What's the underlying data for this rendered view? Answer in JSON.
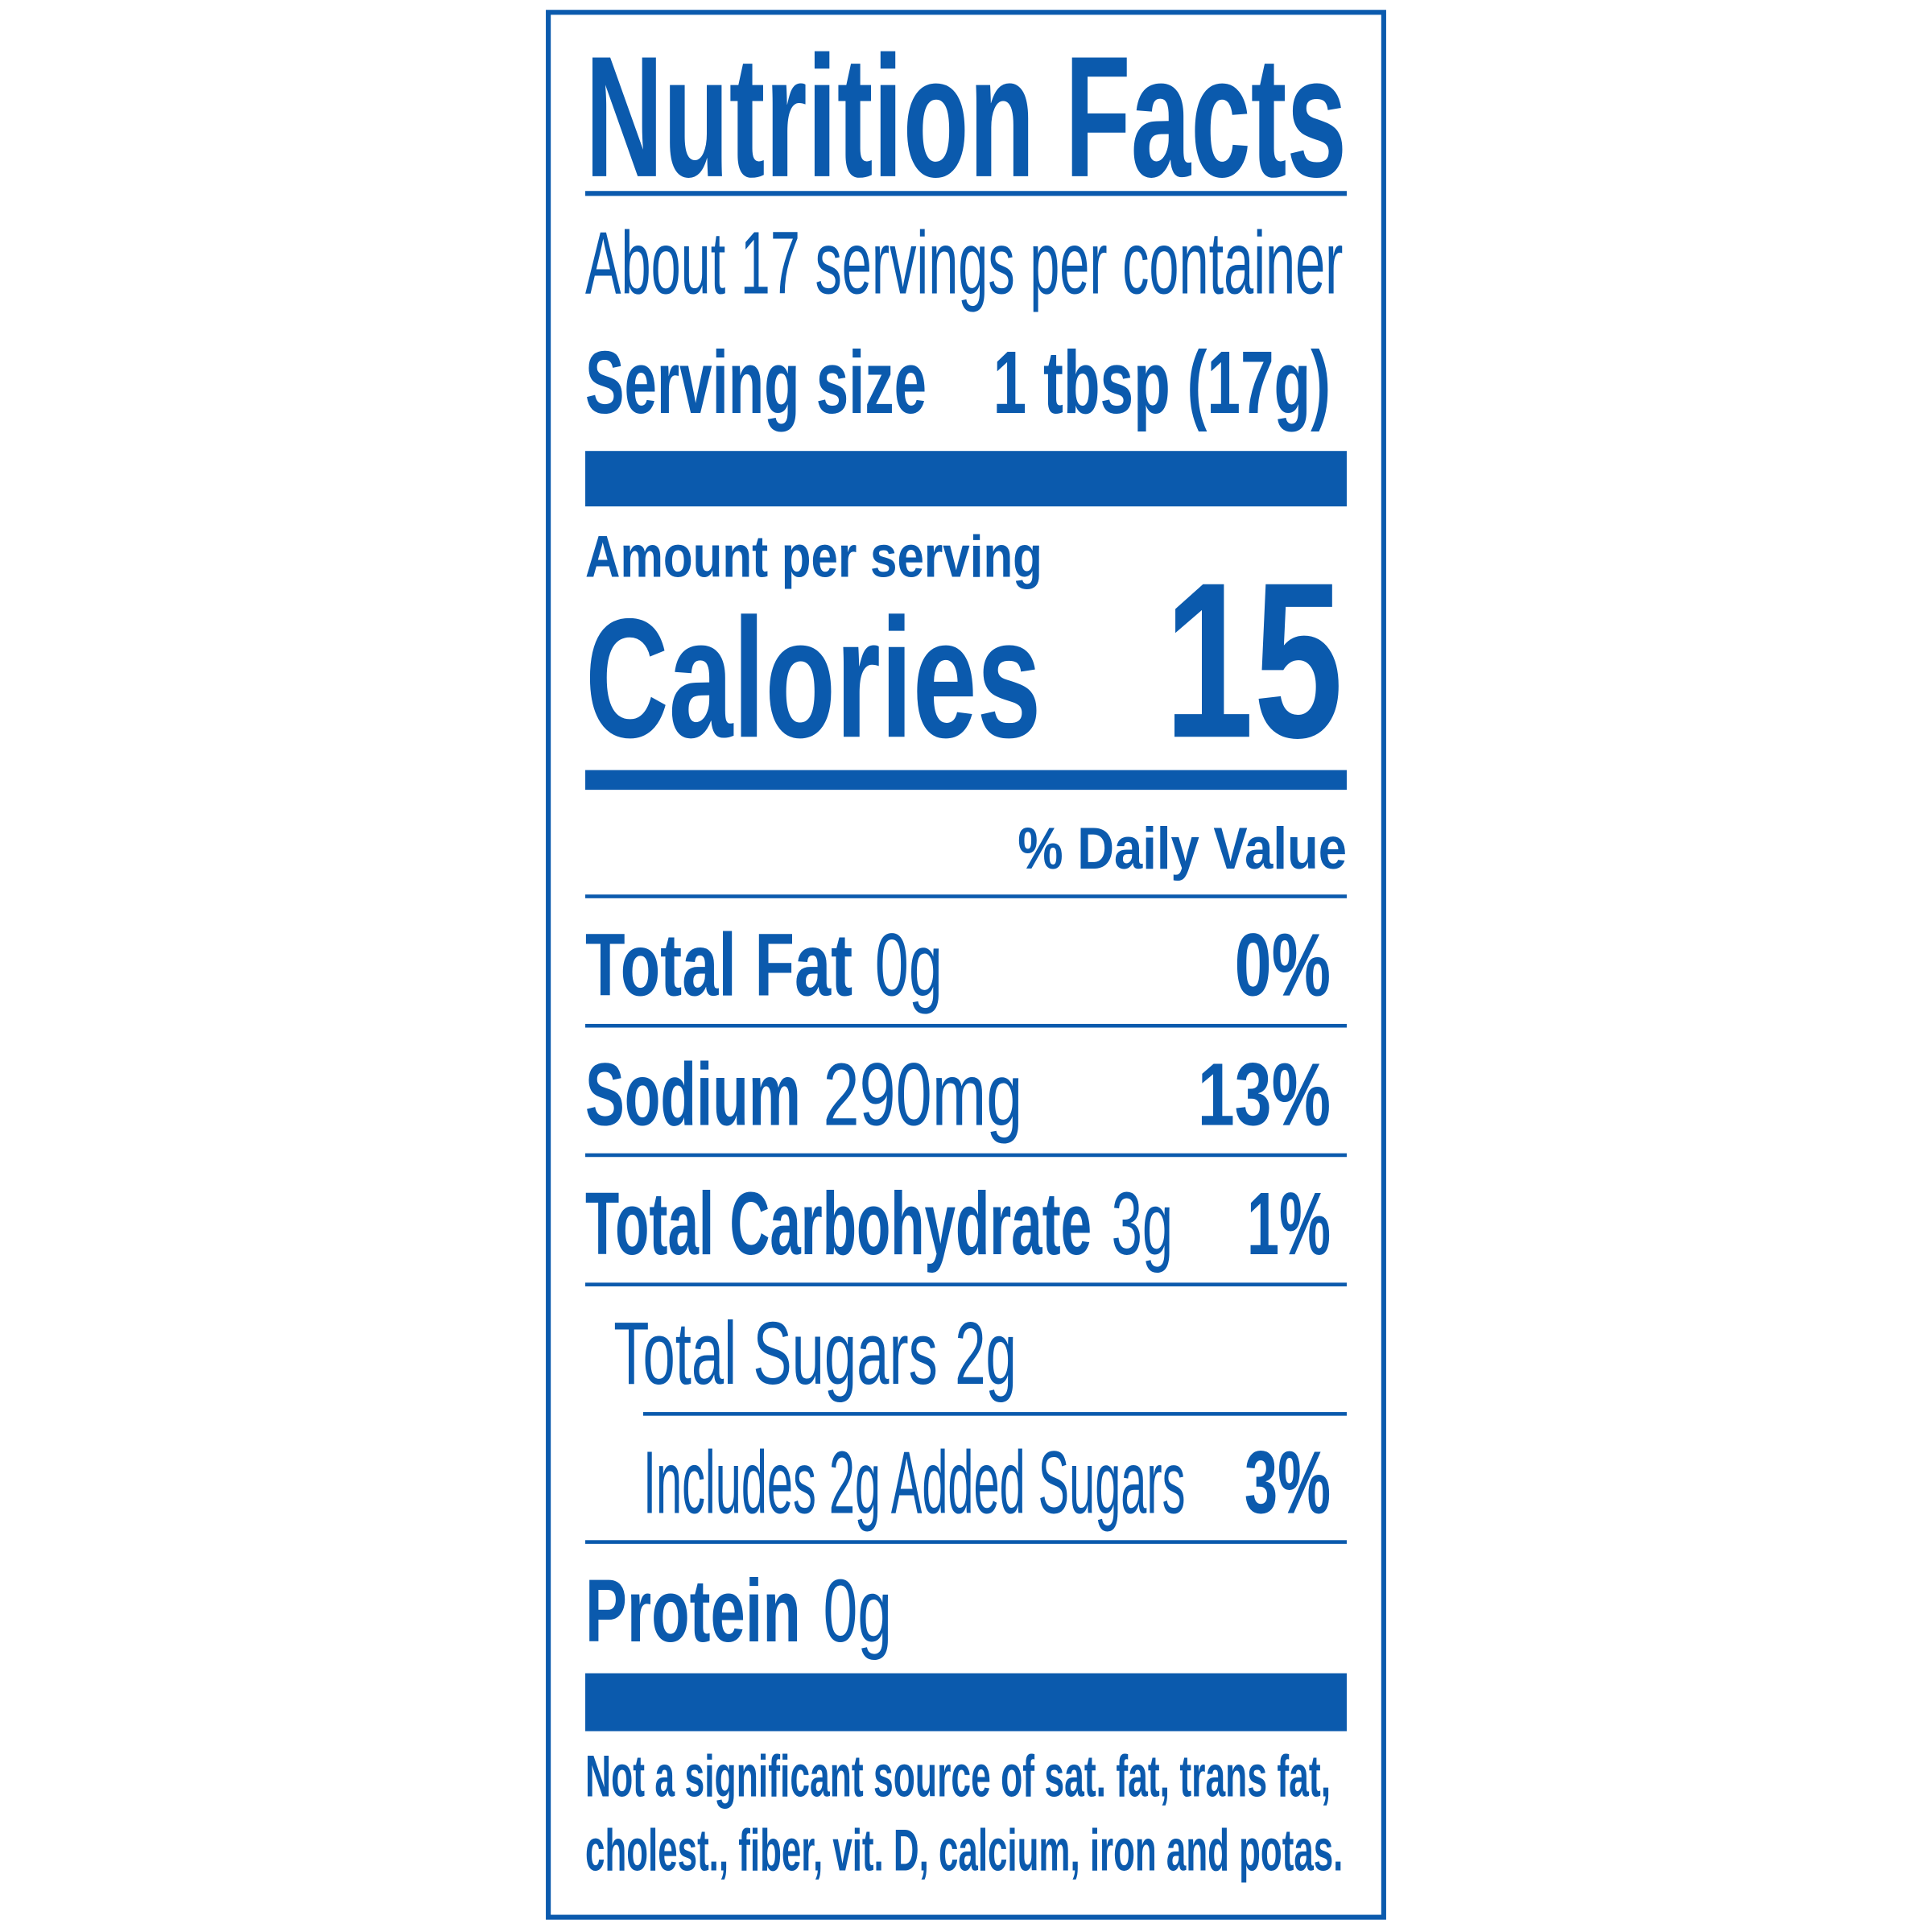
{
  "header": {
    "title": "Nutrition Facts",
    "servings": "About 17 servings per container",
    "serving_size_label": "Serving size",
    "serving_size": "1 tbsp (17g)"
  },
  "calories": {
    "heading": "Amount per serving",
    "label": "Calories",
    "value": 15
  },
  "daily_value_heading": "% Daily Value",
  "nutrients": [
    {
      "name": "Total Fat",
      "amount": "0g",
      "daily_value": "0%"
    },
    {
      "name": "Sodium",
      "amount": "290mg",
      "daily_value": "13%"
    },
    {
      "name": "Total Carbohydrate",
      "amount": "3g",
      "daily_value": "1%"
    },
    {
      "name": "Total Sugars",
      "amount": "2g"
    },
    {
      "name": "Includes 2g Added Sugars",
      "daily_value": "3%"
    },
    {
      "name": "Protein",
      "amount": "0g"
    }
  ],
  "footnote": [
    "Not a significant source of sat. fat, trans fat,",
    "cholest., fiber, vit. D, calcium, iron and potas."
  ]
}
